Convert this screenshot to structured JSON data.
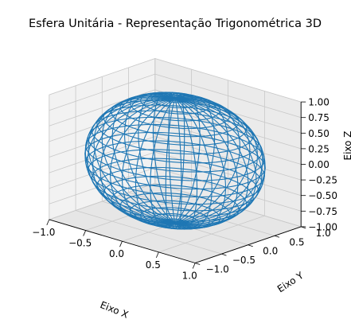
{
  "chart_data": {
    "type": "surface-wireframe-3d",
    "title": "Esfera Unitária - Representação Trigonométrica 3D",
    "xlabel": "Eixo X",
    "ylabel": "Eixo Y",
    "zlabel": "Eixo Z",
    "xlim": [
      -1.0,
      1.0
    ],
    "ylim": [
      -1.0,
      1.0
    ],
    "zlim": [
      -1.0,
      1.0
    ],
    "xticks": [
      "−1.0",
      "−0.5",
      "0.0",
      "0.5",
      "1.0"
    ],
    "yticks": [
      "−1.0",
      "−0.5",
      "0.0",
      "0.5",
      "1.0"
    ],
    "zticks": [
      "−1.00",
      "−0.75",
      "−0.50",
      "−0.25",
      "0.00",
      "0.25",
      "0.50",
      "0.75",
      "1.00"
    ],
    "surface": {
      "shape": "sphere",
      "radius": 1.0,
      "center": [
        0,
        0,
        0
      ]
    },
    "grid": true,
    "wire_color": "#1f77b4",
    "pane_colors": {
      "left": "#f2f2f2",
      "right": "#ebebeb",
      "floor": "#e6e6e6"
    }
  }
}
